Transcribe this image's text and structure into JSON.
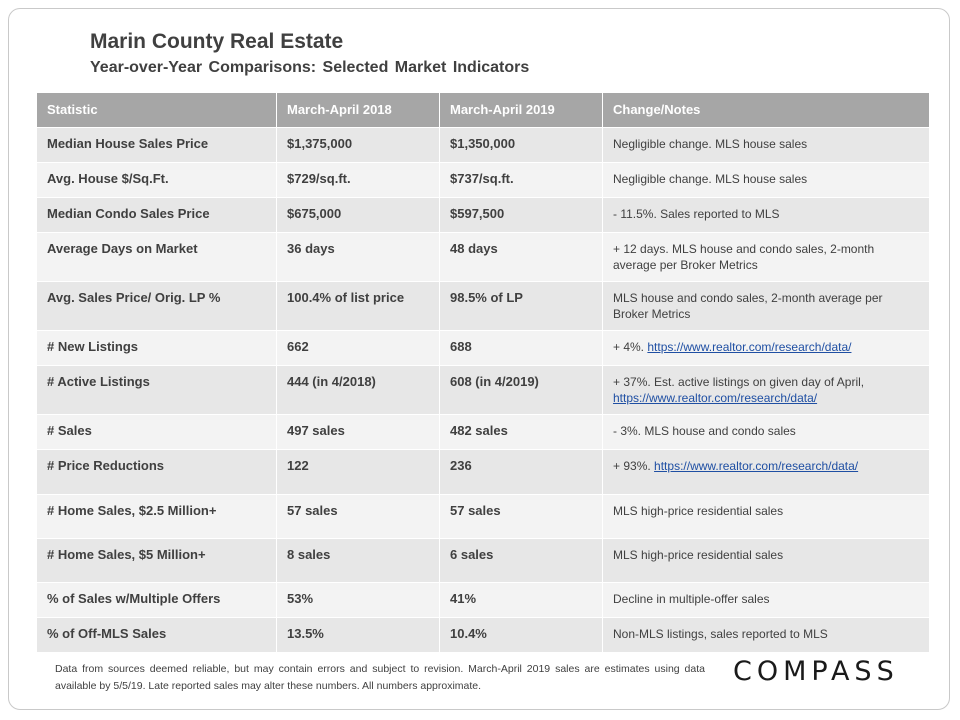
{
  "title": "Marin County Real Estate",
  "subtitle": "Year-over-Year  Comparisons:  Selected Market Indicators",
  "headers": [
    "Statistic",
    "March-April  2018",
    "March-April  2019",
    "Change/Notes"
  ],
  "rows": [
    {
      "stat": "Median House Sales Price",
      "y2018": "$1,375,000",
      "y2019": "$1,350,000",
      "notes": "Negligible change. MLS house sales",
      "link": ""
    },
    {
      "stat": "Avg. House $/Sq.Ft.",
      "y2018": "$729/sq.ft.",
      "y2019": "$737/sq.ft.",
      "notes": "Negligible change. MLS house sales",
      "link": ""
    },
    {
      "stat": "Median Condo Sales Price",
      "y2018": "$675,000",
      "y2019": "$597,500",
      "notes": "- 11.5%.  Sales reported to MLS",
      "link": ""
    },
    {
      "stat": "Average Days on Market",
      "y2018": "36 days",
      "y2019": "48 days",
      "notes": "+ 12 days. MLS house and condo sales, 2-month average per Broker Metrics",
      "link": ""
    },
    {
      "stat": "Avg. Sales Price/ Orig. LP %",
      "y2018": "100.4% of list price",
      "y2019": "98.5% of LP",
      "notes": "MLS house and condo sales, 2-month average per Broker Metrics",
      "link": ""
    },
    {
      "stat": "# New Listings",
      "y2018": "662",
      "y2019": "688",
      "notes": "+ 4%.",
      "link": "https://www.realtor.com/research/data/"
    },
    {
      "stat": "# Active Listings",
      "y2018": "444 (in 4/2018)",
      "y2019": "608 (in 4/2019)",
      "notes": "+ 37%.  Est. active listings on given day of April,",
      "link": "https://www.realtor.com/research/data/"
    },
    {
      "stat": "# Sales",
      "y2018": "497 sales",
      "y2019": "482 sales",
      "notes": "- 3%. MLS house and condo sales",
      "link": ""
    },
    {
      "stat": "# Price Reductions",
      "y2018": "122",
      "y2019": "236",
      "notes": "+ 93%.",
      "link": "https://www.realtor.com/research/data/"
    },
    {
      "stat": "# Home Sales, $2.5 Million+",
      "y2018": "57 sales",
      "y2019": "57 sales",
      "notes": "MLS high-price residential sales",
      "link": ""
    },
    {
      "stat": "# Home Sales, $5 Million+",
      "y2018": "8 sales",
      "y2019": "6 sales",
      "notes": "MLS high-price residential sales",
      "link": ""
    },
    {
      "stat": "% of Sales w/Multiple Offers",
      "y2018": "53%",
      "y2019": "41%",
      "notes": "Decline in multiple-offer sales",
      "link": ""
    },
    {
      "stat": "% of Off-MLS Sales",
      "y2018": "13.5%",
      "y2019": "10.4%",
      "notes": "Non-MLS listings, sales reported to MLS",
      "link": ""
    }
  ],
  "footer": "Data from sources deemed reliable, but may contain errors and subject to revision. March-April 2019 sales are estimates using data available by 5/5/19. Late reported sales may alter these numbers. All numbers approximate.",
  "logo": "COMPASS"
}
